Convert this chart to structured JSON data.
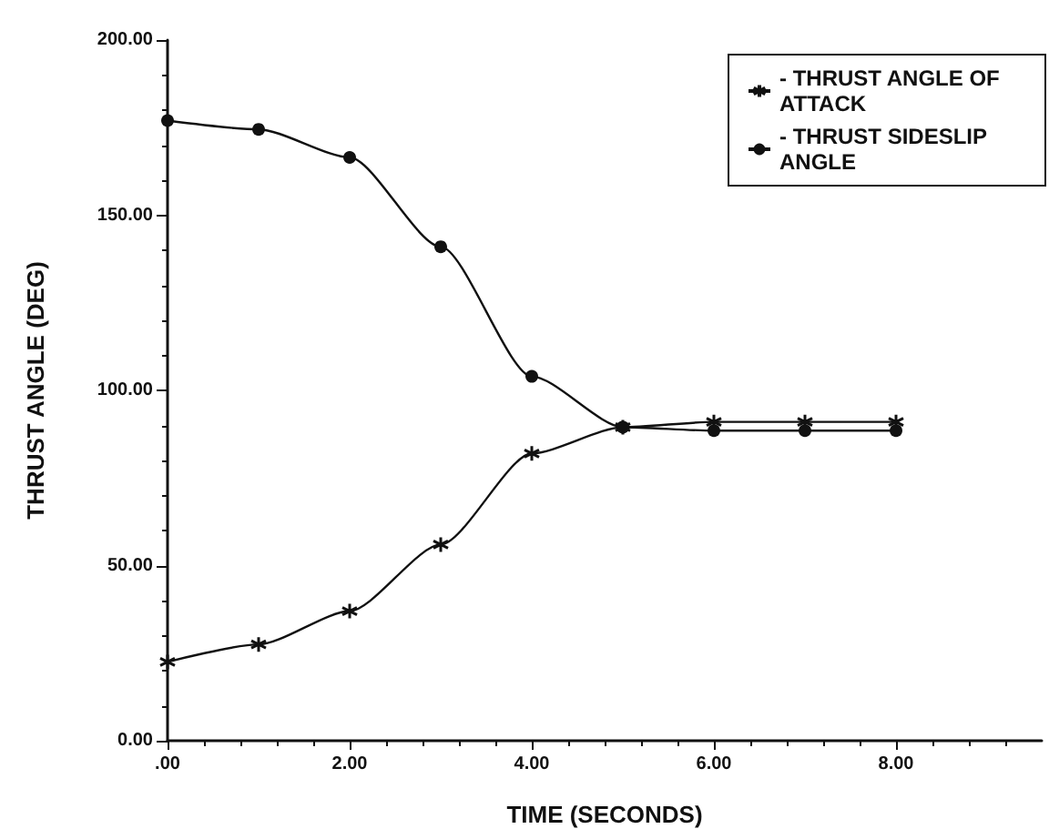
{
  "chart_data": {
    "type": "line",
    "xlabel": "TIME (SECONDS)",
    "ylabel": "THRUST ANGLE (DEG)",
    "x": [
      0,
      1,
      2,
      3,
      4,
      5,
      6,
      7,
      8
    ],
    "series": [
      {
        "name": "- THRUST ANGLE OF ATTACK",
        "color": "#111111",
        "marker": "cross",
        "values": [
          22.5,
          27.5,
          37,
          56,
          82,
          89.5,
          91,
          91,
          91
        ]
      },
      {
        "name": "- THRUST SIDESLIP ANGLE",
        "color": "#111111",
        "marker": "circle",
        "values": [
          177,
          174.5,
          166.5,
          141,
          104,
          89.5,
          88.5,
          88.5,
          88.5
        ]
      }
    ],
    "xlim": [
      0,
      9.6
    ],
    "xticks": [
      {
        "value": 0,
        "label": ".00"
      },
      {
        "value": 2,
        "label": "2.00"
      },
      {
        "value": 4,
        "label": "4.00"
      },
      {
        "value": 6,
        "label": "6.00"
      },
      {
        "value": 8,
        "label": "8.00"
      }
    ],
    "ylim": [
      0,
      200
    ],
    "yticks": [
      {
        "value": 0,
        "label": "0.00"
      },
      {
        "value": 50,
        "label": "50.00"
      },
      {
        "value": 100,
        "label": "100.00"
      },
      {
        "value": 150,
        "label": "150.00"
      },
      {
        "value": 200,
        "label": "200.00"
      }
    ],
    "grid": false,
    "legend": "top right",
    "line_style": "solid"
  }
}
